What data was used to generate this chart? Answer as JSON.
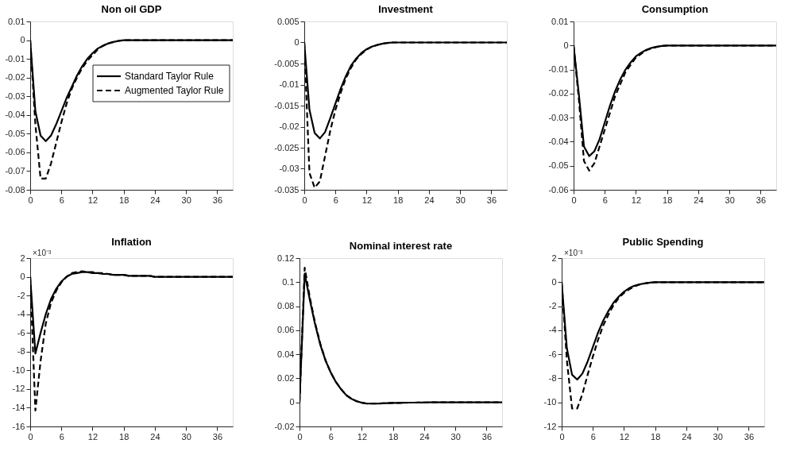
{
  "chart_data": [
    {
      "type": "line",
      "title": "Non oil GDP",
      "x": [
        0,
        1,
        2,
        3,
        4,
        5,
        6,
        7,
        8,
        9,
        10,
        11,
        12,
        13,
        14,
        15,
        16,
        17,
        18,
        19,
        20,
        21,
        22,
        23,
        24,
        25,
        26,
        27,
        28,
        29,
        30,
        31,
        32,
        33,
        34,
        35,
        36,
        37,
        38,
        39
      ],
      "xlim": [
        0,
        39
      ],
      "xticks": [
        0,
        6,
        12,
        18,
        24,
        30,
        36
      ],
      "ylim": [
        -0.08,
        0.01
      ],
      "yticks": [
        -0.08,
        -0.07,
        -0.06,
        -0.05,
        -0.04,
        -0.03,
        -0.02,
        -0.01,
        0,
        0.01
      ],
      "legend": "top right",
      "series": [
        {
          "name": "Standard Taylor Rule",
          "color": "#000000",
          "line_style": "solid",
          "values": [
            0,
            -0.038,
            -0.051,
            -0.054,
            -0.051,
            -0.045,
            -0.038,
            -0.031,
            -0.025,
            -0.019,
            -0.014,
            -0.01,
            -0.007,
            -0.0045,
            -0.003,
            -0.0018,
            -0.001,
            -0.0004,
            0,
            0,
            0,
            0,
            0,
            0,
            0,
            0,
            0,
            0,
            0,
            0,
            0,
            0,
            0,
            0,
            0,
            0,
            0,
            0,
            0,
            0
          ]
        },
        {
          "name": "Augmented Taylor Rule",
          "color": "#000000",
          "line_style": "dashed",
          "values": [
            0,
            -0.045,
            -0.074,
            -0.074,
            -0.066,
            -0.055,
            -0.044,
            -0.034,
            -0.026,
            -0.02,
            -0.015,
            -0.011,
            -0.008,
            -0.005,
            -0.003,
            -0.0018,
            -0.001,
            -0.0004,
            0,
            0,
            0,
            0,
            0,
            0,
            0,
            0,
            0,
            0,
            0,
            0,
            0,
            0,
            0,
            0,
            0,
            0,
            0,
            0,
            0,
            0
          ]
        }
      ]
    },
    {
      "type": "line",
      "title": "Investment",
      "x": [
        0,
        1,
        2,
        3,
        4,
        5,
        6,
        7,
        8,
        9,
        10,
        11,
        12,
        13,
        14,
        15,
        16,
        17,
        18,
        19,
        20,
        21,
        22,
        23,
        24,
        25,
        26,
        27,
        28,
        29,
        30,
        31,
        32,
        33,
        34,
        35,
        36,
        37,
        38,
        39
      ],
      "xlim": [
        0,
        39
      ],
      "xticks": [
        0,
        6,
        12,
        18,
        24,
        30,
        36
      ],
      "ylim": [
        -0.035,
        0.005
      ],
      "yticks": [
        -0.035,
        -0.03,
        -0.025,
        -0.02,
        -0.015,
        -0.01,
        -0.005,
        0,
        0.005
      ],
      "series": [
        {
          "color": "#000000",
          "line_style": "solid",
          "values": [
            0,
            -0.016,
            -0.0215,
            -0.0228,
            -0.0213,
            -0.018,
            -0.0145,
            -0.011,
            -0.008,
            -0.0055,
            -0.0038,
            -0.0025,
            -0.0016,
            -0.001,
            -0.0006,
            -0.0003,
            -0.0001,
            0,
            0,
            0,
            0,
            0,
            0,
            0,
            0,
            0,
            0,
            0,
            0,
            0,
            0,
            0,
            0,
            0,
            0,
            0,
            0,
            0,
            0,
            0
          ]
        },
        {
          "color": "#000000",
          "line_style": "dashed",
          "values": [
            0,
            -0.031,
            -0.0345,
            -0.033,
            -0.027,
            -0.021,
            -0.016,
            -0.012,
            -0.0085,
            -0.006,
            -0.004,
            -0.0027,
            -0.0017,
            -0.001,
            -0.0006,
            -0.0003,
            -0.0001,
            0,
            0,
            0,
            0,
            0,
            0,
            0,
            0,
            0,
            0,
            0,
            0,
            0,
            0,
            0,
            0,
            0,
            0,
            0,
            0,
            0,
            0,
            0
          ]
        }
      ]
    },
    {
      "type": "line",
      "title": "Consumption",
      "x": [
        0,
        1,
        2,
        3,
        4,
        5,
        6,
        7,
        8,
        9,
        10,
        11,
        12,
        13,
        14,
        15,
        16,
        17,
        18,
        19,
        20,
        21,
        22,
        23,
        24,
        25,
        26,
        27,
        28,
        29,
        30,
        31,
        32,
        33,
        34,
        35,
        36,
        37,
        38,
        39
      ],
      "xlim": [
        0,
        39
      ],
      "xticks": [
        0,
        6,
        12,
        18,
        24,
        30,
        36
      ],
      "ylim": [
        -0.06,
        0.01
      ],
      "yticks": [
        -0.06,
        -0.05,
        -0.04,
        -0.03,
        -0.02,
        -0.01,
        0,
        0.01
      ],
      "series": [
        {
          "color": "#000000",
          "line_style": "solid",
          "values": [
            0,
            -0.02,
            -0.042,
            -0.046,
            -0.044,
            -0.039,
            -0.032,
            -0.025,
            -0.019,
            -0.014,
            -0.01,
            -0.007,
            -0.0045,
            -0.003,
            -0.0018,
            -0.001,
            -0.0005,
            -0.0002,
            0,
            0,
            0,
            0,
            0,
            0,
            0,
            0,
            0,
            0,
            0,
            0,
            0,
            0,
            0,
            0,
            0,
            0,
            0,
            0,
            0,
            0
          ]
        },
        {
          "color": "#000000",
          "line_style": "dashed",
          "values": [
            0,
            -0.022,
            -0.048,
            -0.052,
            -0.049,
            -0.042,
            -0.035,
            -0.028,
            -0.021,
            -0.016,
            -0.011,
            -0.008,
            -0.005,
            -0.0035,
            -0.002,
            -0.0012,
            -0.0006,
            -0.0002,
            0,
            0,
            0,
            0,
            0,
            0,
            0,
            0,
            0,
            0,
            0,
            0,
            0,
            0,
            0,
            0,
            0,
            0,
            0,
            0,
            0,
            0
          ]
        }
      ]
    },
    {
      "type": "line",
      "title": "Inflation",
      "x": [
        0,
        1,
        2,
        3,
        4,
        5,
        6,
        7,
        8,
        9,
        10,
        11,
        12,
        13,
        14,
        15,
        16,
        17,
        18,
        19,
        20,
        21,
        22,
        23,
        24,
        25,
        26,
        27,
        28,
        29,
        30,
        31,
        32,
        33,
        34,
        35,
        36,
        37,
        38,
        39
      ],
      "xlim": [
        0,
        39
      ],
      "xticks": [
        0,
        6,
        12,
        18,
        24,
        30,
        36
      ],
      "ylim": [
        -16,
        2
      ],
      "yticks": [
        -16,
        -14,
        -12,
        -10,
        -8,
        -6,
        -4,
        -2,
        0,
        2
      ],
      "annotations": [
        "×10⁻³"
      ],
      "series": [
        {
          "color": "#000000",
          "line_style": "solid",
          "values": [
            0,
            -8.2,
            -6,
            -4,
            -2.4,
            -1.3,
            -0.5,
            0,
            0.3,
            0.4,
            0.5,
            0.5,
            0.4,
            0.4,
            0.3,
            0.3,
            0.2,
            0.2,
            0.2,
            0.1,
            0.1,
            0.1,
            0.1,
            0.1,
            0,
            0,
            0,
            0,
            0,
            0,
            0,
            0,
            0,
            0,
            0,
            0,
            0,
            0,
            0,
            0
          ]
        },
        {
          "color": "#000000",
          "line_style": "dashed",
          "values": [
            0,
            -14.3,
            -9,
            -5,
            -2.8,
            -1.5,
            -0.6,
            0,
            0.4,
            0.5,
            0.6,
            0.5,
            0.5,
            0.4,
            0.4,
            0.3,
            0.2,
            0.2,
            0.2,
            0.1,
            0.1,
            0.1,
            0.1,
            0.1,
            0,
            0,
            0,
            0,
            0,
            0,
            0,
            0,
            0,
            0,
            0,
            0,
            0,
            0,
            0,
            0
          ]
        }
      ]
    },
    {
      "type": "line",
      "title": "Nominal interest rate",
      "x": [
        0,
        1,
        2,
        3,
        4,
        5,
        6,
        7,
        8,
        9,
        10,
        11,
        12,
        13,
        14,
        15,
        16,
        17,
        18,
        19,
        20,
        21,
        22,
        23,
        24,
        25,
        26,
        27,
        28,
        29,
        30,
        31,
        32,
        33,
        34,
        35,
        36,
        37,
        38,
        39
      ],
      "xlim": [
        0,
        39
      ],
      "xticks": [
        0,
        6,
        12,
        18,
        24,
        30,
        36
      ],
      "ylim": [
        -0.02,
        0.12
      ],
      "yticks": [
        -0.02,
        0,
        0.02,
        0.04,
        0.06,
        0.08,
        0.1,
        0.12
      ],
      "series": [
        {
          "color": "#000000",
          "line_style": "solid",
          "values": [
            0,
            0.107,
            0.085,
            0.065,
            0.048,
            0.035,
            0.025,
            0.017,
            0.011,
            0.006,
            0.003,
            0.001,
            -0.0003,
            -0.001,
            -0.001,
            -0.001,
            -0.0008,
            -0.0006,
            -0.0005,
            -0.0004,
            -0.0003,
            -0.0002,
            -0.0002,
            -0.0001,
            -0.0001,
            0,
            0,
            0,
            0,
            0,
            0,
            0,
            0,
            0,
            0,
            0,
            0,
            0,
            0,
            0
          ]
        },
        {
          "color": "#000000",
          "line_style": "dashed",
          "values": [
            0,
            0.112,
            0.087,
            0.066,
            0.049,
            0.035,
            0.025,
            0.017,
            0.011,
            0.006,
            0.003,
            0.001,
            -0.0003,
            -0.001,
            -0.001,
            -0.001,
            -0.0008,
            -0.0006,
            -0.0005,
            -0.0004,
            -0.0003,
            -0.0002,
            -0.0002,
            -0.0001,
            -0.0001,
            0,
            0,
            0,
            0,
            0,
            0,
            0,
            0,
            0,
            0,
            0,
            0,
            0,
            0,
            0
          ]
        }
      ]
    },
    {
      "type": "line",
      "title": "Public Spending",
      "x": [
        0,
        1,
        2,
        3,
        4,
        5,
        6,
        7,
        8,
        9,
        10,
        11,
        12,
        13,
        14,
        15,
        16,
        17,
        18,
        19,
        20,
        21,
        22,
        23,
        24,
        25,
        26,
        27,
        28,
        29,
        30,
        31,
        32,
        33,
        34,
        35,
        36,
        37,
        38,
        39
      ],
      "xlim": [
        0,
        39
      ],
      "xticks": [
        0,
        6,
        12,
        18,
        24,
        30,
        36
      ],
      "ylim": [
        -12,
        2
      ],
      "yticks": [
        -12,
        -10,
        -8,
        -6,
        -4,
        -2,
        0,
        2
      ],
      "annotations": [
        "×10⁻³"
      ],
      "series": [
        {
          "color": "#000000",
          "line_style": "solid",
          "values": [
            0,
            -5.5,
            -7.7,
            -8.1,
            -7.6,
            -6.6,
            -5.4,
            -4.2,
            -3.2,
            -2.4,
            -1.7,
            -1.2,
            -0.8,
            -0.5,
            -0.3,
            -0.18,
            -0.1,
            -0.04,
            0,
            0,
            0,
            0,
            0,
            0,
            0,
            0,
            0,
            0,
            0,
            0,
            0,
            0,
            0,
            0,
            0,
            0,
            0,
            0,
            0,
            0
          ]
        },
        {
          "color": "#000000",
          "line_style": "dashed",
          "values": [
            0,
            -6.5,
            -10.5,
            -10.5,
            -9.3,
            -7.7,
            -6.2,
            -4.8,
            -3.6,
            -2.7,
            -1.9,
            -1.3,
            -0.9,
            -0.6,
            -0.36,
            -0.2,
            -0.1,
            -0.05,
            0,
            0,
            0,
            0,
            0,
            0,
            0,
            0,
            0,
            0,
            0,
            0,
            0,
            0,
            0,
            0,
            0,
            0,
            0,
            0,
            0,
            0
          ]
        }
      ]
    }
  ]
}
